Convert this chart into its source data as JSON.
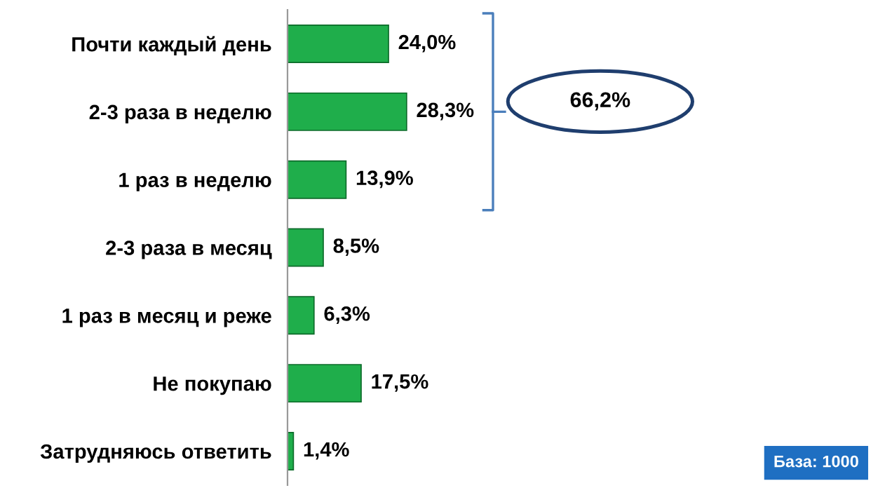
{
  "chart_data": {
    "type": "bar",
    "orientation": "horizontal",
    "categories": [
      "Почти каждый день",
      "2-3 раза в неделю",
      "1 раз в неделю",
      "2-3 раза в месяц",
      "1 раз в месяц и реже",
      "Не покупаю",
      "Затрудняюсь ответить"
    ],
    "values": [
      24.0,
      28.3,
      13.9,
      8.5,
      6.3,
      17.5,
      1.4
    ],
    "value_labels": [
      "24,0%",
      "28,3%",
      "13,9%",
      "8,5%",
      "6,3%",
      "17,5%",
      "1,4%"
    ],
    "color": "#1fae4b",
    "annotations": [
      "66,2%",
      "База: 1000"
    ],
    "grid": false,
    "legend": false
  }
}
